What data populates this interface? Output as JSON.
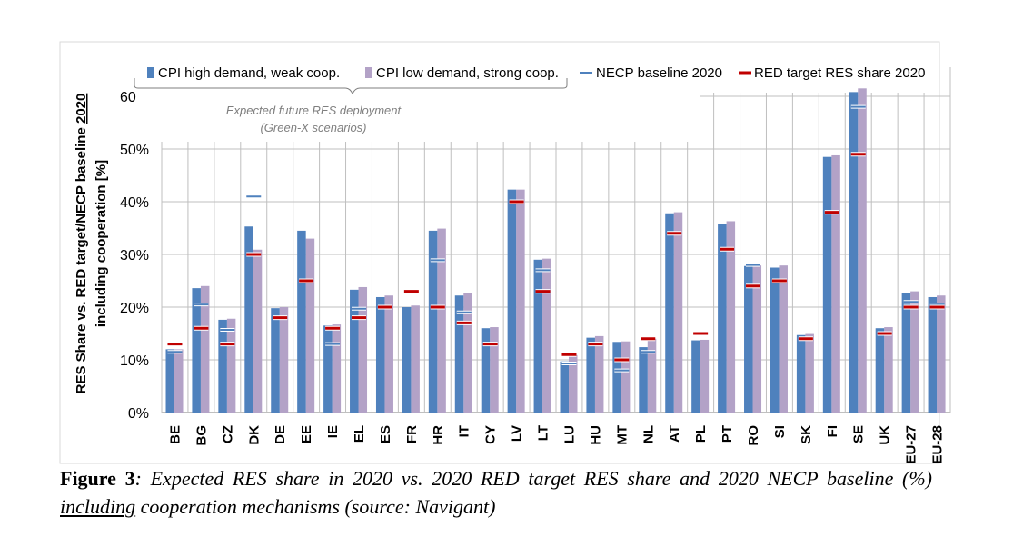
{
  "chart_data": {
    "type": "bar",
    "ylabel_line1": "RES Share vs. RED target/NECP baseline",
    "ylabel_year": "2020",
    "ylabel_line2": "including cooperation [%]",
    "ylim": [
      0,
      0.6
    ],
    "yticks": [
      "0%",
      "10%",
      "20%",
      "30%",
      "40%",
      "50%",
      "60%"
    ],
    "ytick_values": [
      0,
      0.1,
      0.2,
      0.3,
      0.4,
      0.5,
      0.6
    ],
    "grid": true,
    "legend_position": "top",
    "bracket_label_line1": "Expected future RES deployment",
    "bracket_label_line2": "(Green-X scenarios)",
    "categories": [
      "BE",
      "BG",
      "CZ",
      "DK",
      "DE",
      "EE",
      "IE",
      "EL",
      "ES",
      "FR",
      "HR",
      "IT",
      "CY",
      "LV",
      "LT",
      "LU",
      "HU",
      "MT",
      "NL",
      "AT",
      "PL",
      "PT",
      "RO",
      "SI",
      "SK",
      "FI",
      "SE",
      "UK",
      "EU-27",
      "EU-28"
    ],
    "series": [
      {
        "name": "CPI high demand, weak coop.",
        "kind": "bar",
        "color": "#4f81bd",
        "values": [
          0.12,
          0.236,
          0.176,
          0.353,
          0.198,
          0.345,
          0.165,
          0.233,
          0.219,
          0.2,
          0.345,
          0.222,
          0.16,
          0.423,
          0.29,
          0.097,
          0.142,
          0.134,
          0.124,
          0.378,
          0.137,
          0.358,
          0.278,
          0.275,
          0.147,
          0.485,
          0.608,
          0.16,
          0.227,
          0.219
        ]
      },
      {
        "name": "CPI low demand, strong coop.",
        "kind": "bar",
        "color": "#b3a2c7",
        "values": [
          0.12,
          0.24,
          0.178,
          0.309,
          0.2,
          0.33,
          0.167,
          0.238,
          0.222,
          0.203,
          0.349,
          0.226,
          0.162,
          0.423,
          0.292,
          0.109,
          0.145,
          0.135,
          0.14,
          0.38,
          0.138,
          0.363,
          0.279,
          0.279,
          0.149,
          0.488,
          0.615,
          0.162,
          0.23,
          0.222
        ]
      },
      {
        "name": "NECP baseline 2020",
        "kind": "marker",
        "color": "#4f81bd",
        "values": [
          0.115,
          0.205,
          0.157,
          0.41,
          0.18,
          0.25,
          0.13,
          0.197,
          0.2,
          null,
          0.289,
          0.19,
          0.13,
          0.4,
          0.27,
          0.093,
          0.13,
          0.08,
          0.115,
          0.34,
          null,
          0.31,
          0.28,
          0.25,
          0.14,
          0.38,
          0.58,
          0.15,
          0.21,
          0.205
        ]
      },
      {
        "name": "RED target RES share 2020",
        "kind": "marker",
        "color": "#c00000",
        "values": [
          0.13,
          0.16,
          0.13,
          0.3,
          0.18,
          0.25,
          0.16,
          0.18,
          0.2,
          0.23,
          0.2,
          0.17,
          0.13,
          0.4,
          0.23,
          0.11,
          0.13,
          0.1,
          0.14,
          0.34,
          0.15,
          0.31,
          0.24,
          0.25,
          0.14,
          0.38,
          0.49,
          0.15,
          0.2,
          0.2
        ]
      }
    ]
  },
  "caption": {
    "label": "Figure 3",
    "text_before": ": Expected RES share in 2020 vs. 2020 RED target RES share and 2020 NECP baseline (%) ",
    "underlined": "including",
    "text_after": " cooperation mechanisms (source: Navigant)"
  }
}
